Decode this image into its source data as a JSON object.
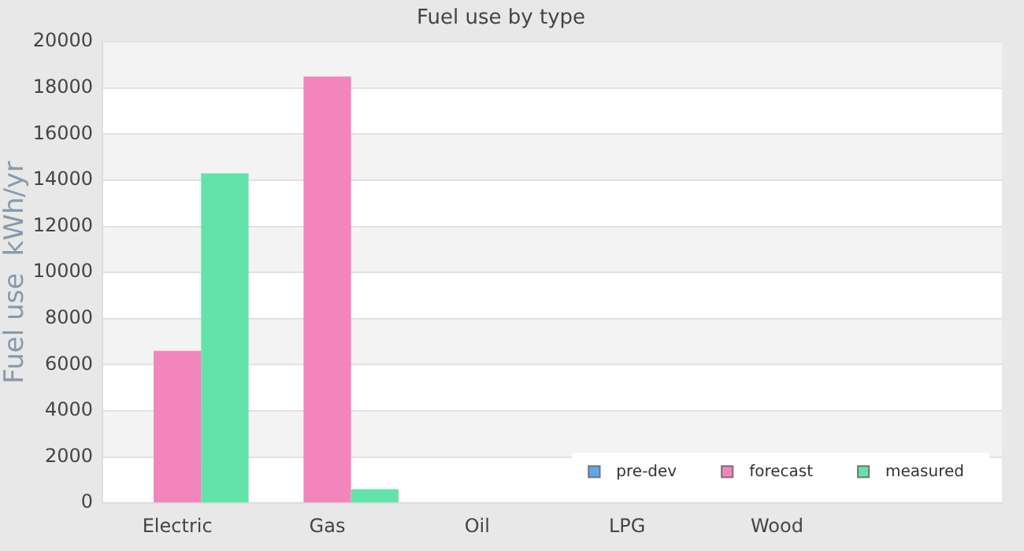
{
  "chart_data": {
    "type": "bar",
    "title": "Fuel use by type",
    "ylabel": "Fuel use  kWh/yr",
    "categories": [
      "Electric",
      "Gas",
      "Oil",
      "LPG",
      "Wood",
      null
    ],
    "series": [
      {
        "name": "pre-dev",
        "color": "#5fa8e8",
        "values": [
          null,
          null,
          null,
          null,
          null,
          null
        ]
      },
      {
        "name": "forecast",
        "color": "#f285bc",
        "values": [
          6600,
          18500,
          null,
          null,
          null,
          null
        ]
      },
      {
        "name": "measured",
        "color": "#62e3a9",
        "values": [
          14300,
          600,
          null,
          null,
          null,
          null
        ]
      }
    ],
    "ylim": [
      0,
      20000
    ],
    "yticks": [
      0,
      2000,
      4000,
      6000,
      8000,
      10000,
      12000,
      14000,
      16000,
      18000,
      20000
    ],
    "grid": true,
    "legend": "bottom right"
  }
}
